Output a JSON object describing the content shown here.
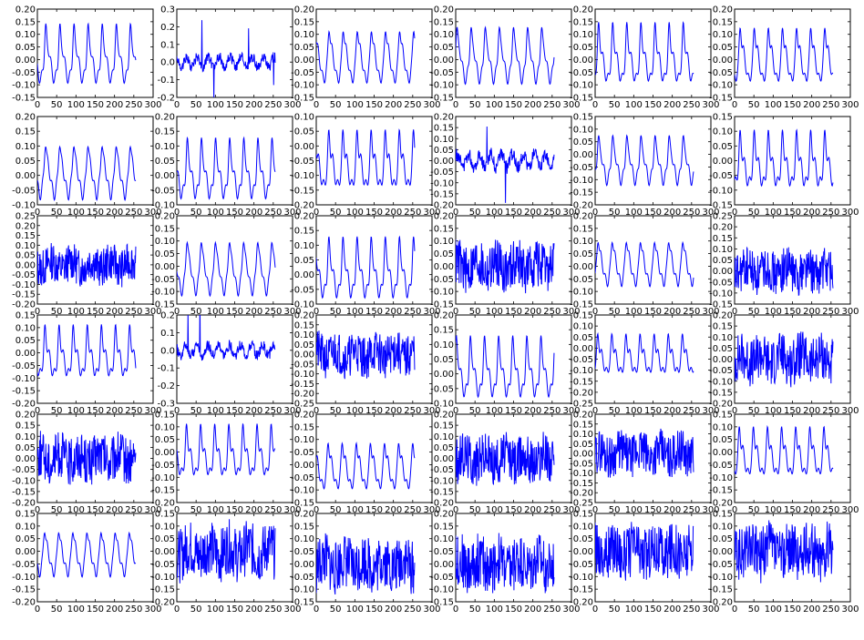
{
  "chart_data": {
    "type": "line",
    "grid": {
      "rows": 6,
      "cols": 6
    },
    "line_color": "#0000ff",
    "grid_lines": false,
    "legend": "none",
    "xlim": [
      0,
      300
    ],
    "x_ticks": [
      0,
      50,
      100,
      150,
      200,
      250,
      300
    ],
    "n_points": 256,
    "panels": [
      {
        "ylim": [
          -0.15,
          0.2
        ],
        "y_ticks": [
          -0.15,
          -0.1,
          -0.05,
          0.0,
          0.05,
          0.1,
          0.15,
          0.2
        ],
        "style": "smooth",
        "amp": 0.14,
        "offset": 0.02,
        "seed": 1
      },
      {
        "ylim": [
          -0.2,
          0.3
        ],
        "y_ticks": [
          -0.2,
          -0.1,
          0.0,
          0.1,
          0.2,
          0.3
        ],
        "style": "spiky",
        "amp": 0.16,
        "offset": 0.0,
        "seed": 2
      },
      {
        "ylim": [
          -0.15,
          0.2
        ],
        "y_ticks": [
          -0.15,
          -0.1,
          -0.05,
          0.0,
          0.05,
          0.1,
          0.15,
          0.2
        ],
        "style": "smooth",
        "amp": 0.14,
        "offset": 0.02,
        "seed": 3
      },
      {
        "ylim": [
          -0.15,
          0.2
        ],
        "y_ticks": [
          -0.15,
          -0.1,
          -0.05,
          0.0,
          0.05,
          0.1,
          0.15,
          0.2
        ],
        "style": "smooth",
        "amp": 0.14,
        "offset": 0.02,
        "seed": 4
      },
      {
        "ylim": [
          -0.15,
          0.2
        ],
        "y_ticks": [
          -0.15,
          -0.1,
          -0.05,
          0.0,
          0.05,
          0.1,
          0.15,
          0.2
        ],
        "style": "smooth",
        "amp": 0.14,
        "offset": 0.02,
        "seed": 5
      },
      {
        "ylim": [
          -0.15,
          0.2
        ],
        "y_ticks": [
          -0.15,
          -0.1,
          -0.05,
          0.0,
          0.05,
          0.1,
          0.15,
          0.2
        ],
        "style": "smooth",
        "amp": 0.14,
        "offset": 0.02,
        "seed": 6
      },
      {
        "ylim": [
          -0.1,
          0.2
        ],
        "y_ticks": [
          -0.1,
          -0.05,
          0.0,
          0.05,
          0.1,
          0.15,
          0.2
        ],
        "style": "smooth",
        "amp": 0.12,
        "offset": 0.02,
        "seed": 7
      },
      {
        "ylim": [
          -0.1,
          0.2
        ],
        "y_ticks": [
          -0.1,
          -0.05,
          0.0,
          0.05,
          0.1,
          0.15,
          0.2
        ],
        "style": "smooth",
        "amp": 0.12,
        "offset": 0.02,
        "seed": 8
      },
      {
        "ylim": [
          -0.2,
          0.1
        ],
        "y_ticks": [
          -0.2,
          -0.15,
          -0.1,
          -0.05,
          0.0,
          0.05,
          0.1
        ],
        "style": "smooth",
        "amp": 0.12,
        "offset": -0.05,
        "seed": 9
      },
      {
        "ylim": [
          -0.2,
          0.2
        ],
        "y_ticks": [
          -0.2,
          -0.15,
          -0.1,
          -0.05,
          0.0,
          0.05,
          0.1,
          0.15,
          0.2
        ],
        "style": "spiky",
        "amp": 0.12,
        "offset": 0.0,
        "seed": 10
      },
      {
        "ylim": [
          -0.2,
          0.15
        ],
        "y_ticks": [
          -0.2,
          -0.15,
          -0.1,
          -0.05,
          0.0,
          0.05,
          0.1,
          0.15
        ],
        "style": "smooth",
        "amp": 0.12,
        "offset": -0.02,
        "seed": 11
      },
      {
        "ylim": [
          -0.15,
          0.15
        ],
        "y_ticks": [
          -0.15,
          -0.1,
          -0.05,
          0.0,
          0.05,
          0.1,
          0.15
        ],
        "style": "smooth",
        "amp": 0.11,
        "offset": 0.0,
        "seed": 12
      },
      {
        "ylim": [
          -0.2,
          0.25
        ],
        "y_ticks": [
          -0.2,
          -0.15,
          -0.1,
          -0.05,
          0.0,
          0.05,
          0.1,
          0.15,
          0.2,
          0.25
        ],
        "style": "noise",
        "amp": 0.08,
        "offset": 0.0,
        "seed": 13
      },
      {
        "ylim": [
          -0.15,
          0.2
        ],
        "y_ticks": [
          -0.15,
          -0.1,
          -0.05,
          0.0,
          0.05,
          0.1,
          0.15,
          0.2
        ],
        "style": "smooth",
        "amp": 0.14,
        "offset": 0.0,
        "seed": 14
      },
      {
        "ylim": [
          -0.1,
          0.2
        ],
        "y_ticks": [
          -0.1,
          -0.05,
          0.0,
          0.05,
          0.1,
          0.15,
          0.2
        ],
        "style": "smooth",
        "amp": 0.12,
        "offset": 0.02,
        "seed": 15
      },
      {
        "ylim": [
          -0.15,
          0.2
        ],
        "y_ticks": [
          -0.15,
          -0.1,
          -0.05,
          0.0,
          0.05,
          0.1,
          0.15,
          0.2
        ],
        "style": "noise",
        "amp": 0.08,
        "offset": 0.0,
        "seed": 16
      },
      {
        "ylim": [
          -0.15,
          0.2
        ],
        "y_ticks": [
          -0.15,
          -0.1,
          -0.05,
          0.0,
          0.05,
          0.1,
          0.15,
          0.2
        ],
        "style": "smooth",
        "amp": 0.12,
        "offset": 0.02,
        "seed": 17
      },
      {
        "ylim": [
          -0.15,
          0.25
        ],
        "y_ticks": [
          -0.15,
          -0.1,
          -0.05,
          0.0,
          0.05,
          0.1,
          0.15,
          0.2,
          0.25
        ],
        "style": "noise",
        "amp": 0.08,
        "offset": 0.0,
        "seed": 18
      },
      {
        "ylim": [
          -0.2,
          0.15
        ],
        "y_ticks": [
          -0.2,
          -0.15,
          -0.1,
          -0.05,
          0.0,
          0.05,
          0.1,
          0.15
        ],
        "style": "smooth",
        "amp": 0.12,
        "offset": 0.0,
        "seed": 19
      },
      {
        "ylim": [
          -0.3,
          0.2
        ],
        "y_ticks": [
          -0.3,
          -0.2,
          -0.1,
          0.0,
          0.1,
          0.2
        ],
        "style": "spiky",
        "amp": 0.16,
        "offset": 0.0,
        "seed": 20
      },
      {
        "ylim": [
          -0.25,
          0.2
        ],
        "y_ticks": [
          -0.25,
          -0.2,
          -0.15,
          -0.1,
          -0.05,
          0.0,
          0.05,
          0.1,
          0.15,
          0.2
        ],
        "style": "noise",
        "amp": 0.09,
        "offset": 0.0,
        "seed": 21
      },
      {
        "ylim": [
          -0.1,
          0.2
        ],
        "y_ticks": [
          -0.1,
          -0.05,
          0.0,
          0.05,
          0.1,
          0.15,
          0.2
        ],
        "style": "smooth",
        "amp": 0.12,
        "offset": 0.02,
        "seed": 22
      },
      {
        "ylim": [
          -0.25,
          0.15
        ],
        "y_ticks": [
          -0.25,
          -0.2,
          -0.15,
          -0.1,
          -0.05,
          0.0,
          0.05,
          0.1,
          0.15
        ],
        "style": "smooth",
        "amp": 0.11,
        "offset": -0.03,
        "seed": 23
      },
      {
        "ylim": [
          -0.2,
          0.2
        ],
        "y_ticks": [
          -0.2,
          -0.15,
          -0.1,
          -0.05,
          0.0,
          0.05,
          0.1,
          0.15,
          0.2
        ],
        "style": "noise",
        "amp": 0.09,
        "offset": 0.0,
        "seed": 24
      },
      {
        "ylim": [
          -0.2,
          0.2
        ],
        "y_ticks": [
          -0.2,
          -0.15,
          -0.1,
          -0.05,
          0.0,
          0.05,
          0.1,
          0.15,
          0.2
        ],
        "style": "noise",
        "amp": 0.09,
        "offset": 0.0,
        "seed": 25
      },
      {
        "ylim": [
          -0.2,
          0.15
        ],
        "y_ticks": [
          -0.2,
          -0.15,
          -0.1,
          -0.05,
          0.0,
          0.05,
          0.1,
          0.15
        ],
        "style": "smooth",
        "amp": 0.12,
        "offset": 0.0,
        "seed": 26
      },
      {
        "ylim": [
          -0.15,
          0.2
        ],
        "y_ticks": [
          -0.15,
          -0.1,
          -0.05,
          0.0,
          0.05,
          0.1,
          0.15,
          0.2
        ],
        "style": "smooth",
        "amp": 0.12,
        "offset": 0.0,
        "seed": 27
      },
      {
        "ylim": [
          -0.2,
          0.2
        ],
        "y_ticks": [
          -0.2,
          -0.15,
          -0.1,
          -0.05,
          0.0,
          0.05,
          0.1,
          0.15,
          0.2
        ],
        "style": "noise",
        "amp": 0.09,
        "offset": 0.0,
        "seed": 28
      },
      {
        "ylim": [
          -0.25,
          0.2
        ],
        "y_ticks": [
          -0.25,
          -0.2,
          -0.15,
          -0.1,
          -0.05,
          0.0,
          0.05,
          0.1,
          0.15,
          0.2
        ],
        "style": "noise",
        "amp": 0.09,
        "offset": 0.0,
        "seed": 29
      },
      {
        "ylim": [
          -0.2,
          0.15
        ],
        "y_ticks": [
          -0.2,
          -0.15,
          -0.1,
          -0.05,
          0.0,
          0.05,
          0.1,
          0.15
        ],
        "style": "smooth",
        "amp": 0.12,
        "offset": 0.0,
        "seed": 30
      },
      {
        "ylim": [
          -0.2,
          0.15
        ],
        "y_ticks": [
          -0.2,
          -0.15,
          -0.1,
          -0.05,
          0.0,
          0.05,
          0.1,
          0.15
        ],
        "style": "smooth",
        "amp": 0.12,
        "offset": 0.0,
        "seed": 31
      },
      {
        "ylim": [
          -0.2,
          0.15
        ],
        "y_ticks": [
          -0.2,
          -0.15,
          -0.1,
          -0.05,
          0.0,
          0.05,
          0.1,
          0.15
        ],
        "style": "noise",
        "amp": 0.09,
        "offset": 0.0,
        "seed": 32
      },
      {
        "ylim": [
          -0.15,
          0.2
        ],
        "y_ticks": [
          -0.15,
          -0.1,
          -0.05,
          0.0,
          0.05,
          0.1,
          0.15,
          0.2
        ],
        "style": "noise",
        "amp": 0.09,
        "offset": 0.0,
        "seed": 33
      },
      {
        "ylim": [
          -0.15,
          0.2
        ],
        "y_ticks": [
          -0.15,
          -0.1,
          -0.05,
          0.0,
          0.05,
          0.1,
          0.15,
          0.2
        ],
        "style": "noise",
        "amp": 0.09,
        "offset": 0.0,
        "seed": 34
      },
      {
        "ylim": [
          -0.2,
          0.15
        ],
        "y_ticks": [
          -0.2,
          -0.15,
          -0.1,
          -0.05,
          0.0,
          0.05,
          0.1,
          0.15
        ],
        "style": "noise",
        "amp": 0.09,
        "offset": 0.0,
        "seed": 35
      },
      {
        "ylim": [
          -0.2,
          0.15
        ],
        "y_ticks": [
          -0.2,
          -0.15,
          -0.1,
          -0.05,
          0.0,
          0.05,
          0.1,
          0.15
        ],
        "style": "noise",
        "amp": 0.09,
        "offset": 0.0,
        "seed": 36
      }
    ]
  }
}
